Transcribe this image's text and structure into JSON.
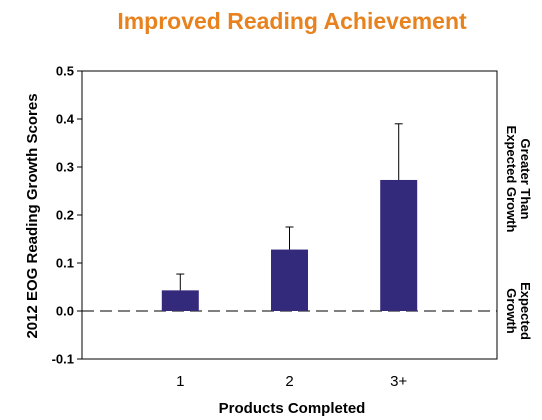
{
  "chart_data": {
    "type": "bar",
    "title": "Improved Reading Achievement",
    "xlabel": "Products Completed",
    "ylabel": "2012 EOG Reading Growth Scores",
    "categories": [
      "1",
      "2",
      "3+"
    ],
    "values": [
      0.043,
      0.128,
      0.273
    ],
    "error_upper": [
      0.077,
      0.175,
      0.39
    ],
    "ylim": [
      -0.1,
      0.5
    ],
    "yticks": [
      "-0.1",
      "0.0",
      "0.1",
      "0.2",
      "0.3",
      "0.4",
      "0.5"
    ],
    "reference_line": 0.0,
    "right_annotations": [
      {
        "lines": [
          "Greater Than",
          "Expected Growth"
        ],
        "y": 0.275
      },
      {
        "lines": [
          "Expected",
          "Growth"
        ],
        "y": 0.0
      }
    ],
    "colors": {
      "title": "#E8821E",
      "bar": "#332A7C",
      "text": "#000000"
    }
  }
}
